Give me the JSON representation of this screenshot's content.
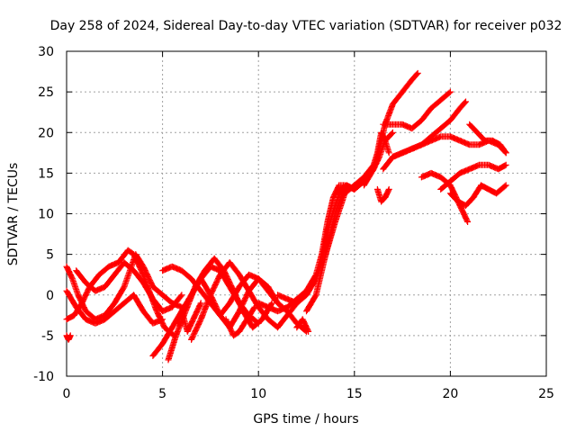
{
  "chart_data": {
    "type": "scatter",
    "title": "Day 258 of 2024, Sidereal Day-to-day VTEC variation (SDTVAR) for receiver p032",
    "xlabel": "GPS time / hours",
    "ylabel": "SDTVAR / TECUs",
    "xlim": [
      0,
      25
    ],
    "ylim": [
      -10,
      30
    ],
    "x_ticks": [
      0,
      5,
      10,
      15,
      20,
      25
    ],
    "y_ticks": [
      -10,
      -5,
      0,
      5,
      10,
      15,
      20,
      25,
      30
    ],
    "x_tick_labels": [
      "0",
      "5",
      "10",
      "15",
      "20",
      "25"
    ],
    "y_tick_labels": [
      "-10",
      "-5",
      "0",
      "5",
      "10",
      "15",
      "20",
      "25",
      "30"
    ],
    "grid": true,
    "legend": "none",
    "marker": "+",
    "color": "#ff0000",
    "series": [
      {
        "x": [
          0.0,
          0.3,
          0.6,
          1.0,
          1.5,
          2.0,
          2.5,
          3.0,
          3.3,
          3.6,
          4.0,
          4.5,
          5.0,
          5.5,
          6.0
        ],
        "y": [
          3.5,
          2.0,
          0.0,
          -2.0,
          -3.0,
          -2.5,
          -1.0,
          1.0,
          3.0,
          5.0,
          3.5,
          1.0,
          0.0,
          -1.0,
          -1.5
        ]
      },
      {
        "x": [
          0.0,
          0.4,
          0.8,
          1.2,
          1.7,
          2.2,
          2.7,
          3.2,
          3.5,
          3.9,
          4.3,
          4.7,
          5.1,
          5.6
        ],
        "y": [
          -3.0,
          -2.5,
          -1.0,
          1.0,
          2.5,
          3.5,
          4.0,
          5.5,
          5.0,
          3.0,
          0.5,
          -2.0,
          -4.0,
          -5.0
        ]
      },
      {
        "x": [
          0.0,
          0.5,
          1.0,
          1.5,
          2.0,
          2.5,
          3.0,
          3.5,
          4.0,
          4.5,
          5.0
        ],
        "y": [
          0.5,
          -1.5,
          -3.0,
          -3.5,
          -3.0,
          -2.0,
          -1.0,
          0.0,
          -2.0,
          -3.5,
          -3.0
        ]
      },
      {
        "x": [
          0.5,
          1.0,
          1.5,
          2.0,
          2.5,
          3.0,
          3.5,
          4.0,
          4.5,
          5.0,
          5.5,
          6.0
        ],
        "y": [
          3.0,
          1.5,
          0.5,
          1.0,
          2.5,
          4.0,
          3.0,
          1.5,
          -0.5,
          -2.0,
          -1.5,
          0.0
        ]
      },
      {
        "x": [
          4.5,
          5.0,
          5.5,
          6.0,
          6.5,
          7.0,
          7.5,
          8.0,
          8.5,
          9.0,
          9.5,
          10.0
        ],
        "y": [
          -7.5,
          -6.0,
          -4.0,
          -2.0,
          0.0,
          2.0,
          3.5,
          3.0,
          1.0,
          -1.0,
          -2.5,
          -3.5
        ]
      },
      {
        "x": [
          5.0,
          5.5,
          6.0,
          6.5,
          7.0,
          7.5,
          8.0,
          8.5,
          9.0,
          9.5,
          10.0,
          10.5,
          11.0
        ],
        "y": [
          3.0,
          3.5,
          3.0,
          2.0,
          0.5,
          -1.0,
          -2.5,
          -1.0,
          1.0,
          2.5,
          2.0,
          0.5,
          -1.0
        ]
      },
      {
        "x": [
          5.3,
          5.7,
          6.2,
          6.7,
          7.2,
          7.7,
          8.2,
          8.7,
          9.2,
          9.7,
          10.2,
          10.7
        ],
        "y": [
          -8.0,
          -5.0,
          -2.0,
          1.0,
          3.0,
          4.5,
          3.0,
          0.5,
          -2.0,
          -4.0,
          -3.0,
          -1.0
        ]
      },
      {
        "x": [
          6.5,
          7.0,
          7.5,
          8.0,
          8.5,
          9.0,
          9.5,
          10.0,
          10.5,
          11.0,
          11.5,
          12.0
        ],
        "y": [
          -5.5,
          -3.0,
          0.0,
          2.5,
          4.0,
          2.5,
          0.5,
          -1.5,
          -3.0,
          -4.0,
          -2.5,
          -1.0
        ]
      },
      {
        "x": [
          7.0,
          7.5,
          8.0,
          8.5,
          9.0,
          9.5,
          10.0,
          10.5,
          11.0,
          11.5,
          12.0,
          12.5
        ],
        "y": [
          2.0,
          0.0,
          -2.5,
          -4.0,
          -2.0,
          0.5,
          2.0,
          1.0,
          -1.0,
          -2.0,
          -3.5,
          -4.5
        ]
      },
      {
        "x": [
          10.0,
          10.5,
          11.0,
          11.5,
          12.0,
          12.5,
          13.0,
          13.3,
          13.6,
          13.9,
          14.2,
          14.5,
          15.0
        ],
        "y": [
          -1.0,
          -1.5,
          -2.0,
          -1.5,
          -0.5,
          0.5,
          2.5,
          5.0,
          9.0,
          12.0,
          13.5,
          13.5,
          13.0
        ]
      },
      {
        "x": [
          11.0,
          11.5,
          12.0,
          12.5,
          13.0,
          13.3,
          13.6,
          14.0,
          14.3,
          14.6,
          15.0
        ],
        "y": [
          0.0,
          -0.5,
          -1.0,
          0.0,
          2.0,
          4.0,
          8.0,
          11.0,
          13.0,
          13.5,
          13.0
        ]
      },
      {
        "x": [
          12.5,
          13.0,
          13.3,
          13.7,
          14.0,
          14.3,
          14.6,
          15.0,
          15.5,
          16.0,
          16.3,
          16.6,
          17.0
        ],
        "y": [
          -2.0,
          0.0,
          3.0,
          7.0,
          10.0,
          12.0,
          13.5,
          13.0,
          14.0,
          15.5,
          17.0,
          19.0,
          20.0
        ]
      },
      {
        "x": [
          13.5,
          14.0,
          14.5,
          15.0,
          15.5,
          16.0,
          16.2,
          16.4,
          16.6,
          16.8
        ],
        "y": [
          5.0,
          9.0,
          12.5,
          13.5,
          14.5,
          16.0,
          17.5,
          20.0,
          19.0,
          17.5
        ]
      },
      {
        "x": [
          15.5,
          16.0,
          16.3,
          16.6,
          17.0,
          17.5,
          18.0,
          18.3
        ],
        "y": [
          13.5,
          15.5,
          18.0,
          21.0,
          23.5,
          25.0,
          26.5,
          27.3
        ]
      },
      {
        "x": [
          16.5,
          17.0,
          17.5,
          18.0,
          18.5,
          19.0,
          19.5,
          20.0
        ],
        "y": [
          21.0,
          21.0,
          21.0,
          20.5,
          21.5,
          23.0,
          24.0,
          25.0
        ]
      },
      {
        "x": [
          16.5,
          17.0,
          17.5,
          18.0,
          18.5,
          19.0,
          19.5,
          20.0,
          20.5,
          20.8
        ],
        "y": [
          15.5,
          17.0,
          17.5,
          18.0,
          18.5,
          19.5,
          20.5,
          21.5,
          23.0,
          23.8
        ]
      },
      {
        "x": [
          17.0,
          17.5,
          18.0,
          18.5,
          19.0,
          19.5,
          20.0,
          20.5,
          21.0,
          21.5,
          22.0,
          22.5,
          22.9
        ],
        "y": [
          17.0,
          17.5,
          18.0,
          18.5,
          19.0,
          19.5,
          19.5,
          19.0,
          18.5,
          18.5,
          19.0,
          18.5,
          17.5
        ]
      },
      {
        "x": [
          18.5,
          19.0,
          19.5,
          20.0,
          20.3,
          20.6,
          20.9
        ],
        "y": [
          14.5,
          15.0,
          14.5,
          13.5,
          12.0,
          10.5,
          9.0
        ]
      },
      {
        "x": [
          19.5,
          20.0,
          20.5,
          21.0,
          21.5,
          22.0,
          22.5,
          22.9
        ],
        "y": [
          13.0,
          14.0,
          15.0,
          15.5,
          16.0,
          16.0,
          15.5,
          16.0
        ]
      },
      {
        "x": [
          20.0,
          20.4,
          20.8,
          21.2,
          21.6,
          22.0,
          22.4,
          22.9
        ],
        "y": [
          12.5,
          11.5,
          11.0,
          12.0,
          13.5,
          13.0,
          12.5,
          13.5
        ]
      },
      {
        "x": [
          21.0,
          21.4,
          21.8,
          22.2,
          22.6,
          22.9
        ],
        "y": [
          21.0,
          20.0,
          19.0,
          19.0,
          18.5,
          17.5
        ]
      },
      {
        "x": [
          0.0,
          0.1,
          0.2
        ],
        "y": [
          -5.0,
          -5.5,
          -5.0
        ]
      },
      {
        "x": [
          5.8,
          6.0,
          6.3,
          6.6,
          7.0
        ],
        "y": [
          -3.5,
          -2.0,
          -4.5,
          -3.0,
          -1.0
        ]
      },
      {
        "x": [
          8.3,
          8.7,
          9.0,
          9.4,
          9.8
        ],
        "y": [
          -3.0,
          -5.0,
          -4.5,
          -3.0,
          -1.5
        ]
      },
      {
        "x": [
          12.0,
          12.3,
          12.6
        ],
        "y": [
          -4.0,
          -3.0,
          -4.5
        ]
      },
      {
        "x": [
          16.2,
          16.4,
          16.6,
          16.8
        ],
        "y": [
          13.0,
          11.5,
          12.0,
          13.0
        ]
      }
    ]
  }
}
